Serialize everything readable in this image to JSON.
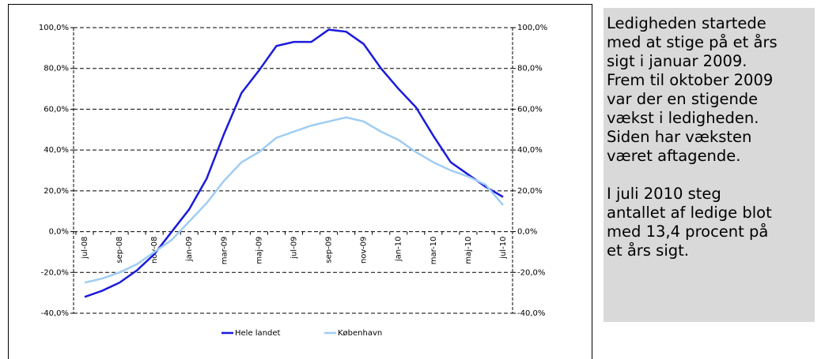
{
  "chart_data": {
    "type": "line",
    "categories": [
      "jul-08",
      null,
      "sep-08",
      null,
      "nov-08",
      null,
      "jan-09",
      null,
      "mar-09",
      null,
      "maj-09",
      null,
      "jul-09",
      null,
      "sep-09",
      null,
      "nov-09",
      null,
      "jan-10",
      null,
      "mar-10",
      null,
      "maj-10",
      null,
      "jul-10"
    ],
    "series": [
      {
        "name": "Hele landet",
        "color": "#1a1adc",
        "values": [
          -32,
          -29,
          -25,
          -19,
          -11,
          0,
          11,
          26,
          48,
          68,
          79,
          91,
          93,
          93,
          99,
          98,
          92,
          80,
          70,
          61,
          47,
          34,
          28,
          22,
          17
        ]
      },
      {
        "name": "København",
        "color": "#9fcdf3",
        "values": [
          -25,
          -23,
          -20,
          -16,
          -10,
          -4,
          5,
          14,
          25,
          34,
          39,
          46,
          49,
          52,
          54,
          56,
          54,
          49,
          45,
          39,
          34,
          30,
          27,
          23,
          13
        ]
      }
    ],
    "ylim": [
      -40,
      100
    ],
    "yticks": [
      {
        "value": -40,
        "label": "-40,0%"
      },
      {
        "value": -20,
        "label": "-20,0%"
      },
      {
        "value": 0,
        "label": "0,0%"
      },
      {
        "value": 20,
        "label": "20,0%"
      },
      {
        "value": 40,
        "label": "40,0%"
      },
      {
        "value": 60,
        "label": "60,0%"
      },
      {
        "value": 80,
        "label": "80,0%"
      },
      {
        "value": 100,
        "label": "100,0%"
      }
    ],
    "y2lim": [
      -40,
      100
    ],
    "y2ticks": [
      {
        "value": -40,
        "label": "-40,0%"
      },
      {
        "value": -20,
        "label": "-20,0%"
      },
      {
        "value": 0,
        "label": "0,0%"
      },
      {
        "value": 20,
        "label": "20,0%"
      },
      {
        "value": 40,
        "label": "40,0%"
      },
      {
        "value": 60,
        "label": "60,0%"
      },
      {
        "value": 80,
        "label": "80,0%"
      },
      {
        "value": 100,
        "label": "100,0%"
      }
    ],
    "grid": true,
    "legend": "bottom"
  },
  "note": {
    "paragraphs": [
      [
        "Ledigheden startede",
        "med at stige på et års",
        "sigt i januar 2009.",
        "Frem til oktober 2009",
        "var der en stigende",
        "vækst i ledigheden.",
        "Siden har væksten",
        "været aftagende."
      ],
      [
        "I juli 2010 steg",
        "antallet af ledige blot",
        "med 13,4 procent på",
        "et års sigt."
      ]
    ]
  }
}
